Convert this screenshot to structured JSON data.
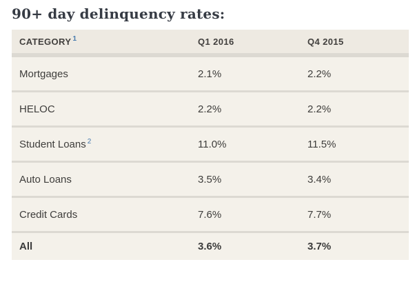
{
  "title": "90+ day delinquency rates:",
  "colors": {
    "page_background": "#ffffff",
    "title_text": "#363b44",
    "header_background": "#eeeae2",
    "row_background": "#f4f1ea",
    "separator": "#dcd9d2",
    "body_text": "#3e3d3b",
    "footnote_link": "#4579ad"
  },
  "table": {
    "columns": [
      {
        "label": "CATEGORY",
        "footnote": "1"
      },
      {
        "label": "Q1 2016"
      },
      {
        "label": "Q4 2015"
      }
    ],
    "rows": [
      {
        "category": "Mortgages",
        "q1_2016": "2.1%",
        "q4_2015": "2.2%"
      },
      {
        "category": "HELOC",
        "q1_2016": "2.2%",
        "q4_2015": "2.2%"
      },
      {
        "category": "Student Loans",
        "footnote": "2",
        "q1_2016": "11.0%",
        "q4_2015": "11.5%"
      },
      {
        "category": "Auto Loans",
        "q1_2016": "3.5%",
        "q4_2015": "3.4%"
      },
      {
        "category": "Credit Cards",
        "q1_2016": "7.6%",
        "q4_2015": "7.7%"
      },
      {
        "category": "All",
        "q1_2016": "3.6%",
        "q4_2015": "3.7%"
      }
    ]
  },
  "chart_data": {
    "type": "table",
    "title": "90+ day delinquency rates:",
    "categories": [
      "Mortgages",
      "HELOC",
      "Student Loans",
      "Auto Loans",
      "Credit Cards",
      "All"
    ],
    "series": [
      {
        "name": "Q1 2016",
        "values": [
          2.1,
          2.2,
          11.0,
          3.5,
          7.6,
          3.6
        ]
      },
      {
        "name": "Q4 2015",
        "values": [
          2.2,
          2.2,
          11.5,
          3.4,
          7.7,
          3.7
        ]
      }
    ],
    "unit": "%"
  }
}
